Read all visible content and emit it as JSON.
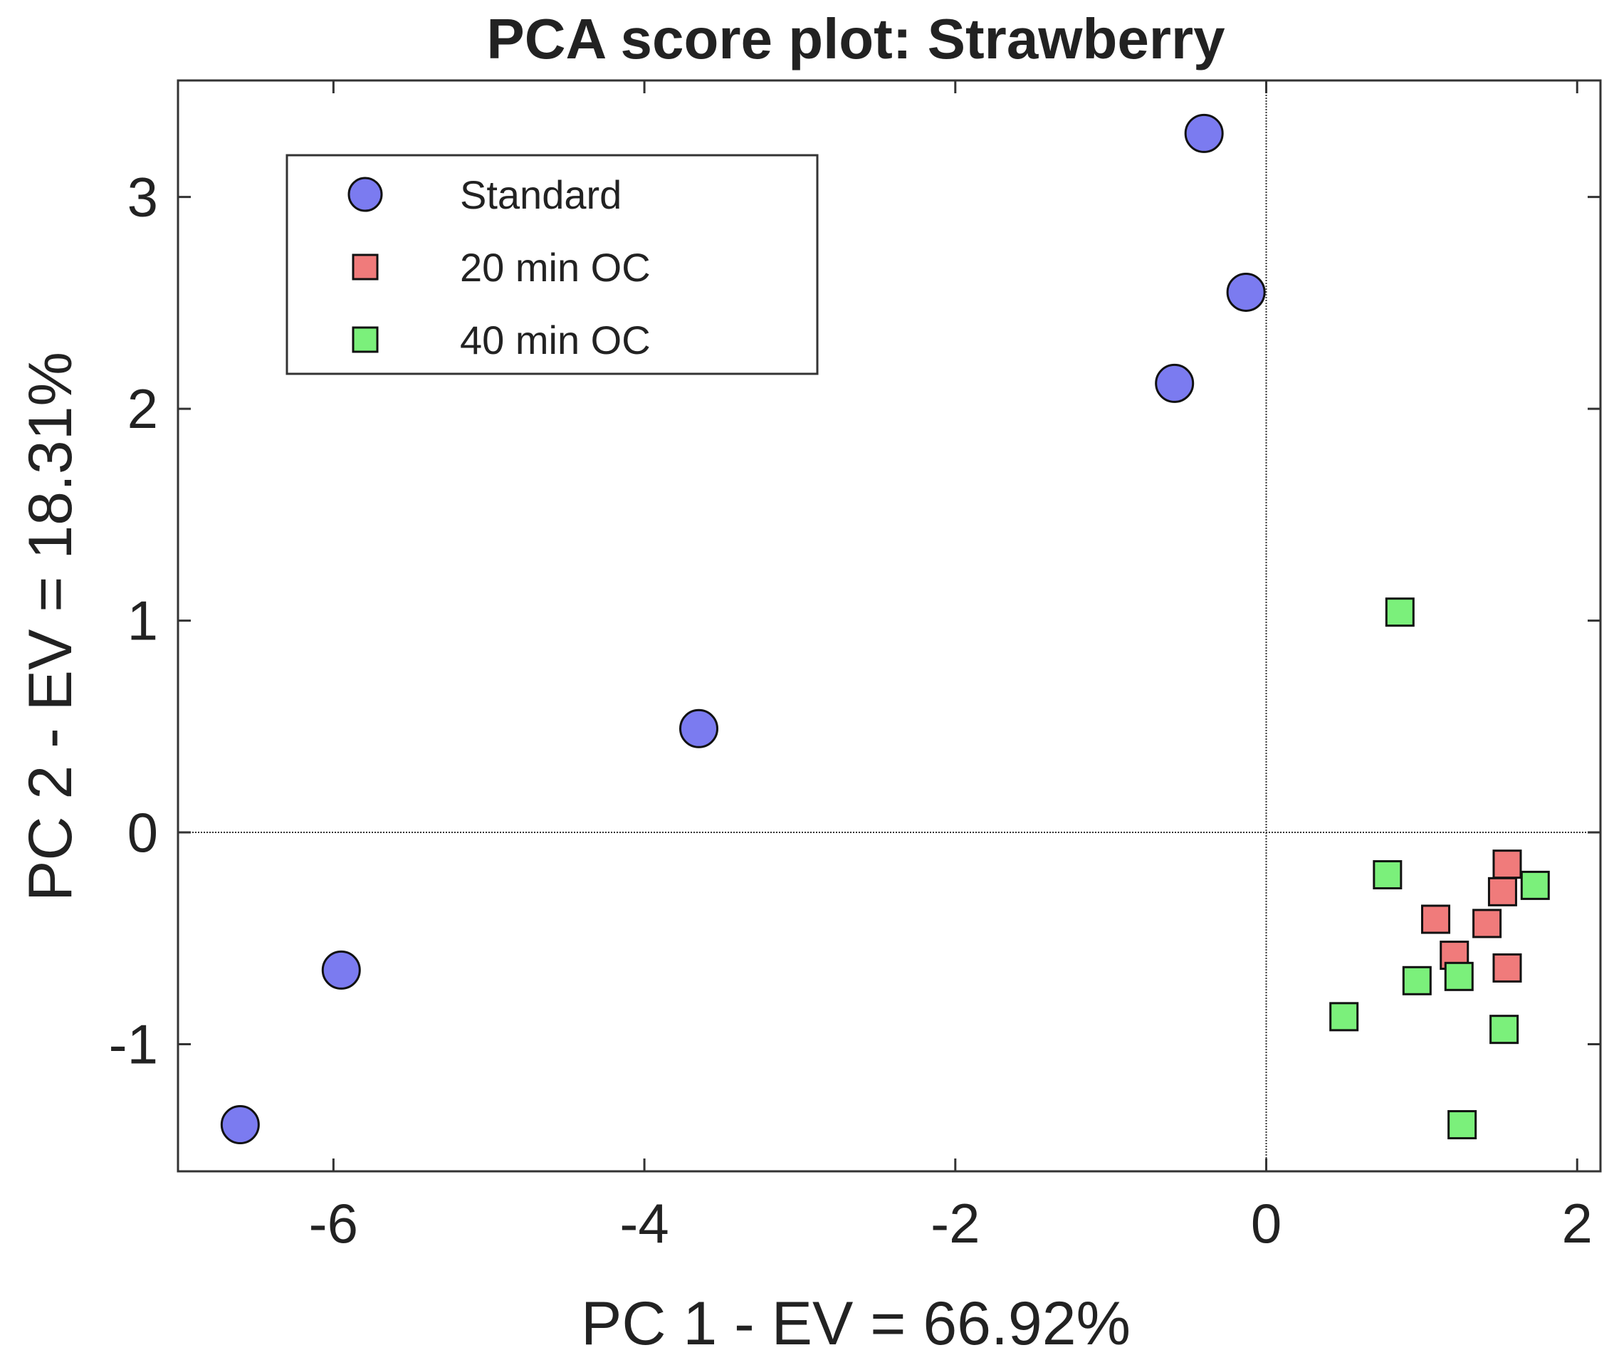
{
  "chart_data": {
    "type": "scatter",
    "title": "PCA score plot: Strawberry",
    "xlabel": "PC 1 - EV = 66.92%",
    "ylabel": "PC 2 - EV = 18.31%",
    "xlim": [
      -7,
      2.15
    ],
    "ylim": [
      -1.6,
      3.55
    ],
    "xticks": [
      -6,
      -4,
      -2,
      0,
      2
    ],
    "yticks": [
      -1,
      0,
      1,
      2,
      3
    ],
    "xtick_labels": [
      "-6",
      "-4",
      "-2",
      "0",
      "2"
    ],
    "ytick_labels": [
      "-1",
      "0",
      "1",
      "2",
      "3"
    ],
    "zero_lines": true,
    "grid": false,
    "legend_position": "top-left",
    "series": [
      {
        "name": "Standard",
        "marker": "circle",
        "color": "#7b7bf0",
        "x": [
          -0.4,
          -0.13,
          -0.59,
          -3.65,
          -5.95,
          -6.6
        ],
        "y": [
          3.3,
          2.55,
          2.12,
          0.49,
          -0.65,
          -1.38
        ]
      },
      {
        "name": "20 min OC",
        "marker": "square",
        "color": "#f07b7b",
        "x": [
          1.55,
          1.52,
          1.09,
          1.42,
          1.21,
          1.55
        ],
        "y": [
          -0.15,
          -0.28,
          -0.41,
          -0.43,
          -0.58,
          -0.64
        ]
      },
      {
        "name": "40 min OC",
        "marker": "square",
        "color": "#7bf07b",
        "x": [
          0.86,
          0.78,
          1.73,
          0.97,
          1.24,
          0.5,
          1.53,
          1.26
        ],
        "y": [
          1.04,
          -0.2,
          -0.25,
          -0.7,
          -0.68,
          -0.87,
          -0.93,
          -1.38
        ]
      }
    ]
  }
}
